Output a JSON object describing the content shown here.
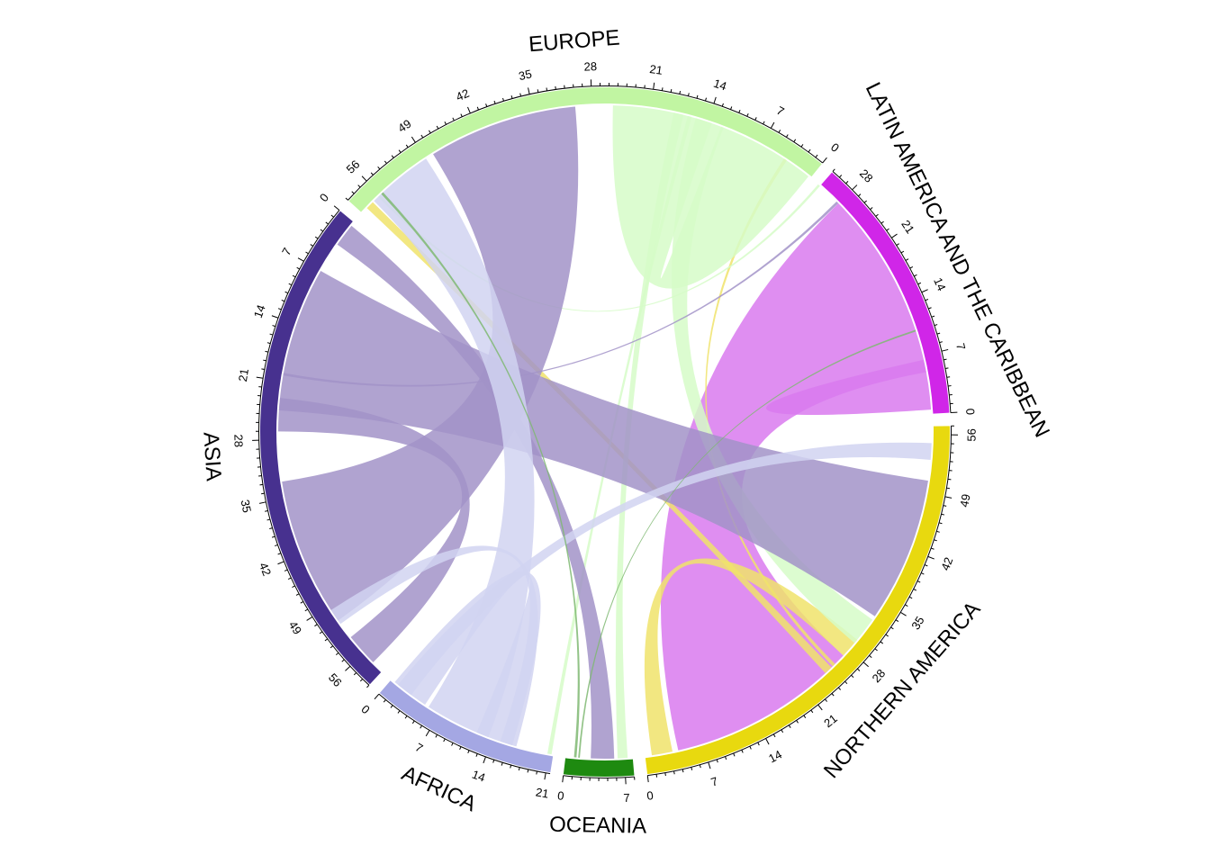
{
  "chart_data": {
    "type": "chord",
    "sectors": [
      {
        "name": "NORTHERN AMERICA",
        "total": 57,
        "color": "#E8D90F",
        "ticks": [
          0,
          7,
          14,
          21,
          28,
          35,
          42,
          49,
          56
        ]
      },
      {
        "name": "OCEANIA",
        "total": 8,
        "color": "#1E8A10",
        "ticks": [
          0,
          7
        ]
      },
      {
        "name": "AFRICA",
        "total": 21.5,
        "color": "#A4A7E3",
        "ticks": [
          0,
          7,
          14,
          21
        ]
      },
      {
        "name": "ASIA",
        "total": 59,
        "color": "#47318F",
        "ticks": [
          0,
          7,
          14,
          21,
          28,
          35,
          42,
          49,
          56
        ]
      },
      {
        "name": "EUROPE",
        "total": 59,
        "color": "#C1F5A2",
        "ticks": [
          0,
          7,
          14,
          21,
          28,
          35,
          42,
          49,
          56
        ]
      },
      {
        "name": "LATIN AMERICA AND THE CARIBBEAN",
        "total": 31,
        "color": "#D026E8",
        "ticks": [
          0,
          7,
          14,
          21,
          28
        ]
      }
    ],
    "links": [
      {
        "source": "LATIN AMERICA AND THE CARIBBEAN",
        "target": "NORTHERN AMERICA",
        "value": 23,
        "src_start": 5,
        "tgt_start": 4,
        "color": "#D97AEE"
      },
      {
        "source": "LATIN AMERICA AND THE CARIBBEAN",
        "target": "LATIN AMERICA AND THE CARIBBEAN",
        "value": 3,
        "src_start": 0.5,
        "tgt_start": 3.5,
        "color": "#D97AEE"
      },
      {
        "source": "NORTHERN AMERICA",
        "target": "NORTHERN AMERICA",
        "value": 2.5,
        "src_start": 0.8,
        "tgt_start": 27,
        "color": "#F0E36B"
      },
      {
        "source": "NORTHERN AMERICA",
        "target": "EUROPE",
        "value": 1,
        "src_start": 24,
        "tgt_start": 57.2,
        "color": "#F0E36B"
      },
      {
        "source": "NORTHERN AMERICA",
        "target": "EUROPE",
        "value": 0.4,
        "src_start": 25.2,
        "tgt_start": 3.5,
        "color": "#F0E36B"
      },
      {
        "source": "EUROPE",
        "target": "NORTHERN AMERICA",
        "value": 3.5,
        "src_start": 12,
        "tgt_start": 29,
        "color": "#D6FBC8"
      },
      {
        "source": "EUROPE",
        "target": "OCEANIA",
        "value": 1.2,
        "src_start": 17,
        "tgt_start": 6.2,
        "color": "#D6FBC8"
      },
      {
        "source": "EUROPE",
        "target": "AFRICA",
        "value": 0.5,
        "src_start": 16,
        "tgt_start": 20.8,
        "color": "#D6FBC8"
      },
      {
        "source": "EUROPE",
        "target": "EUROPE",
        "value": 12,
        "src_start": 0.3,
        "tgt_start": 13.5,
        "color": "#D6FBC8"
      },
      {
        "source": "EUROPE",
        "target": "LATIN AMERICA AND THE CARIBBEAN",
        "value": 0.3,
        "src_start": 56,
        "tgt_start": 31,
        "color": "#D6FBC8"
      },
      {
        "source": "ASIA",
        "target": "NORTHERN AMERICA",
        "value": 17.5,
        "src_start": 7,
        "tgt_start": 33,
        "color": "#A293C8"
      },
      {
        "source": "ASIA",
        "target": "EUROPE",
        "value": 18,
        "src_start": 33,
        "tgt_start": 30,
        "color": "#A293C8"
      },
      {
        "source": "ASIA",
        "target": "ASIA",
        "value": 4,
        "src_start": 23,
        "tgt_start": 53.5,
        "color": "#A293C8"
      },
      {
        "source": "ASIA",
        "target": "OCEANIA",
        "value": 2.8,
        "src_start": 0.5,
        "tgt_start": 3,
        "color": "#A293C8"
      },
      {
        "source": "ASIA",
        "target": "LATIN AMERICA AND THE CARIBBEAN",
        "value": 0.3,
        "src_start": 20,
        "tgt_start": 28,
        "color": "#A293C8"
      },
      {
        "source": "AFRICA",
        "target": "EUROPE",
        "value": 8,
        "src_start": 5.5,
        "tgt_start": 49,
        "color": "#D1D3F1"
      },
      {
        "source": "AFRICA",
        "target": "AFRICA",
        "value": 4.5,
        "src_start": 0.5,
        "tgt_start": 12,
        "color": "#D1D3F1"
      },
      {
        "source": "AFRICA",
        "target": "NORTHERN AMERICA",
        "value": 2,
        "src_start": 1,
        "tgt_start": 53,
        "color": "#D1D3F1"
      },
      {
        "source": "AFRICA",
        "target": "ASIA",
        "value": 2,
        "src_start": 15,
        "tgt_start": 49.5,
        "color": "#D1D3F1"
      },
      {
        "source": "OCEANIA",
        "target": "EUROPE",
        "value": 0.3,
        "src_start": 1,
        "tgt_start": 55.5,
        "color": "#7FB872"
      },
      {
        "source": "OCEANIA",
        "target": "LATIN AMERICA AND THE CARIBBEAN",
        "value": 0.2,
        "src_start": 1.5,
        "tgt_start": 10,
        "color": "#7FB872"
      }
    ]
  }
}
